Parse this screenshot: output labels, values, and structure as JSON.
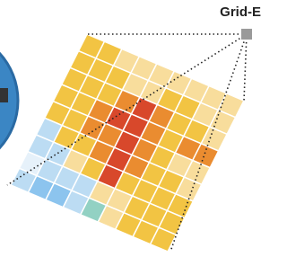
{
  "label": "Grid-E"
}
